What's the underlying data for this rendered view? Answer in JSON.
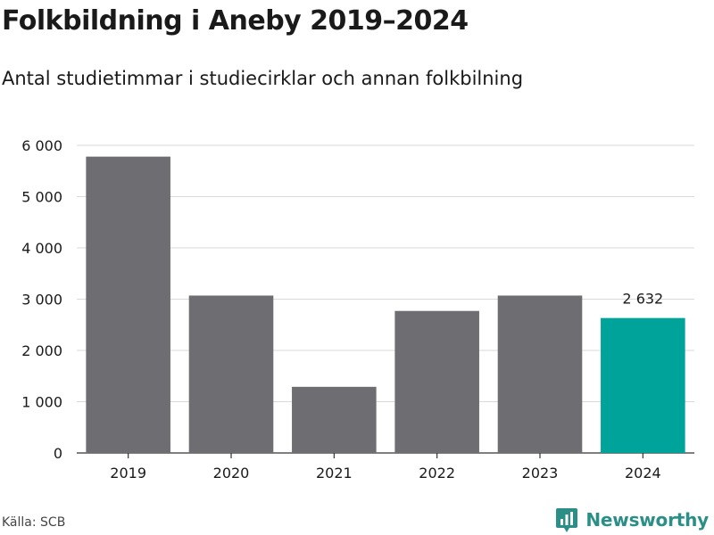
{
  "title": "Folkbildning i Aneby 2019–2024",
  "subtitle": "Antal studietimmar i studiecirklar och annan folkbilning",
  "source": "Källa: SCB",
  "brand": "Newsworthy",
  "colors": {
    "bar": "#6d6d72",
    "highlight": "#00a39a",
    "grid": "#d9d9d9",
    "axis": "#333333",
    "brand": "#2a8f86"
  },
  "chart_data": {
    "type": "bar",
    "categories": [
      "2019",
      "2020",
      "2021",
      "2022",
      "2023",
      "2024"
    ],
    "values": [
      5780,
      3070,
      1290,
      2770,
      3070,
      2632
    ],
    "highlight_index": 5,
    "data_labels": {
      "2024": "2 632"
    },
    "ylim": [
      0,
      6000
    ],
    "yticks": [
      0,
      1000,
      2000,
      3000,
      4000,
      5000,
      6000
    ],
    "ytick_labels": [
      "0",
      "1 000",
      "2 000",
      "3 000",
      "4 000",
      "5 000",
      "6 000"
    ],
    "grid": true,
    "xlabel": "",
    "ylabel": ""
  }
}
